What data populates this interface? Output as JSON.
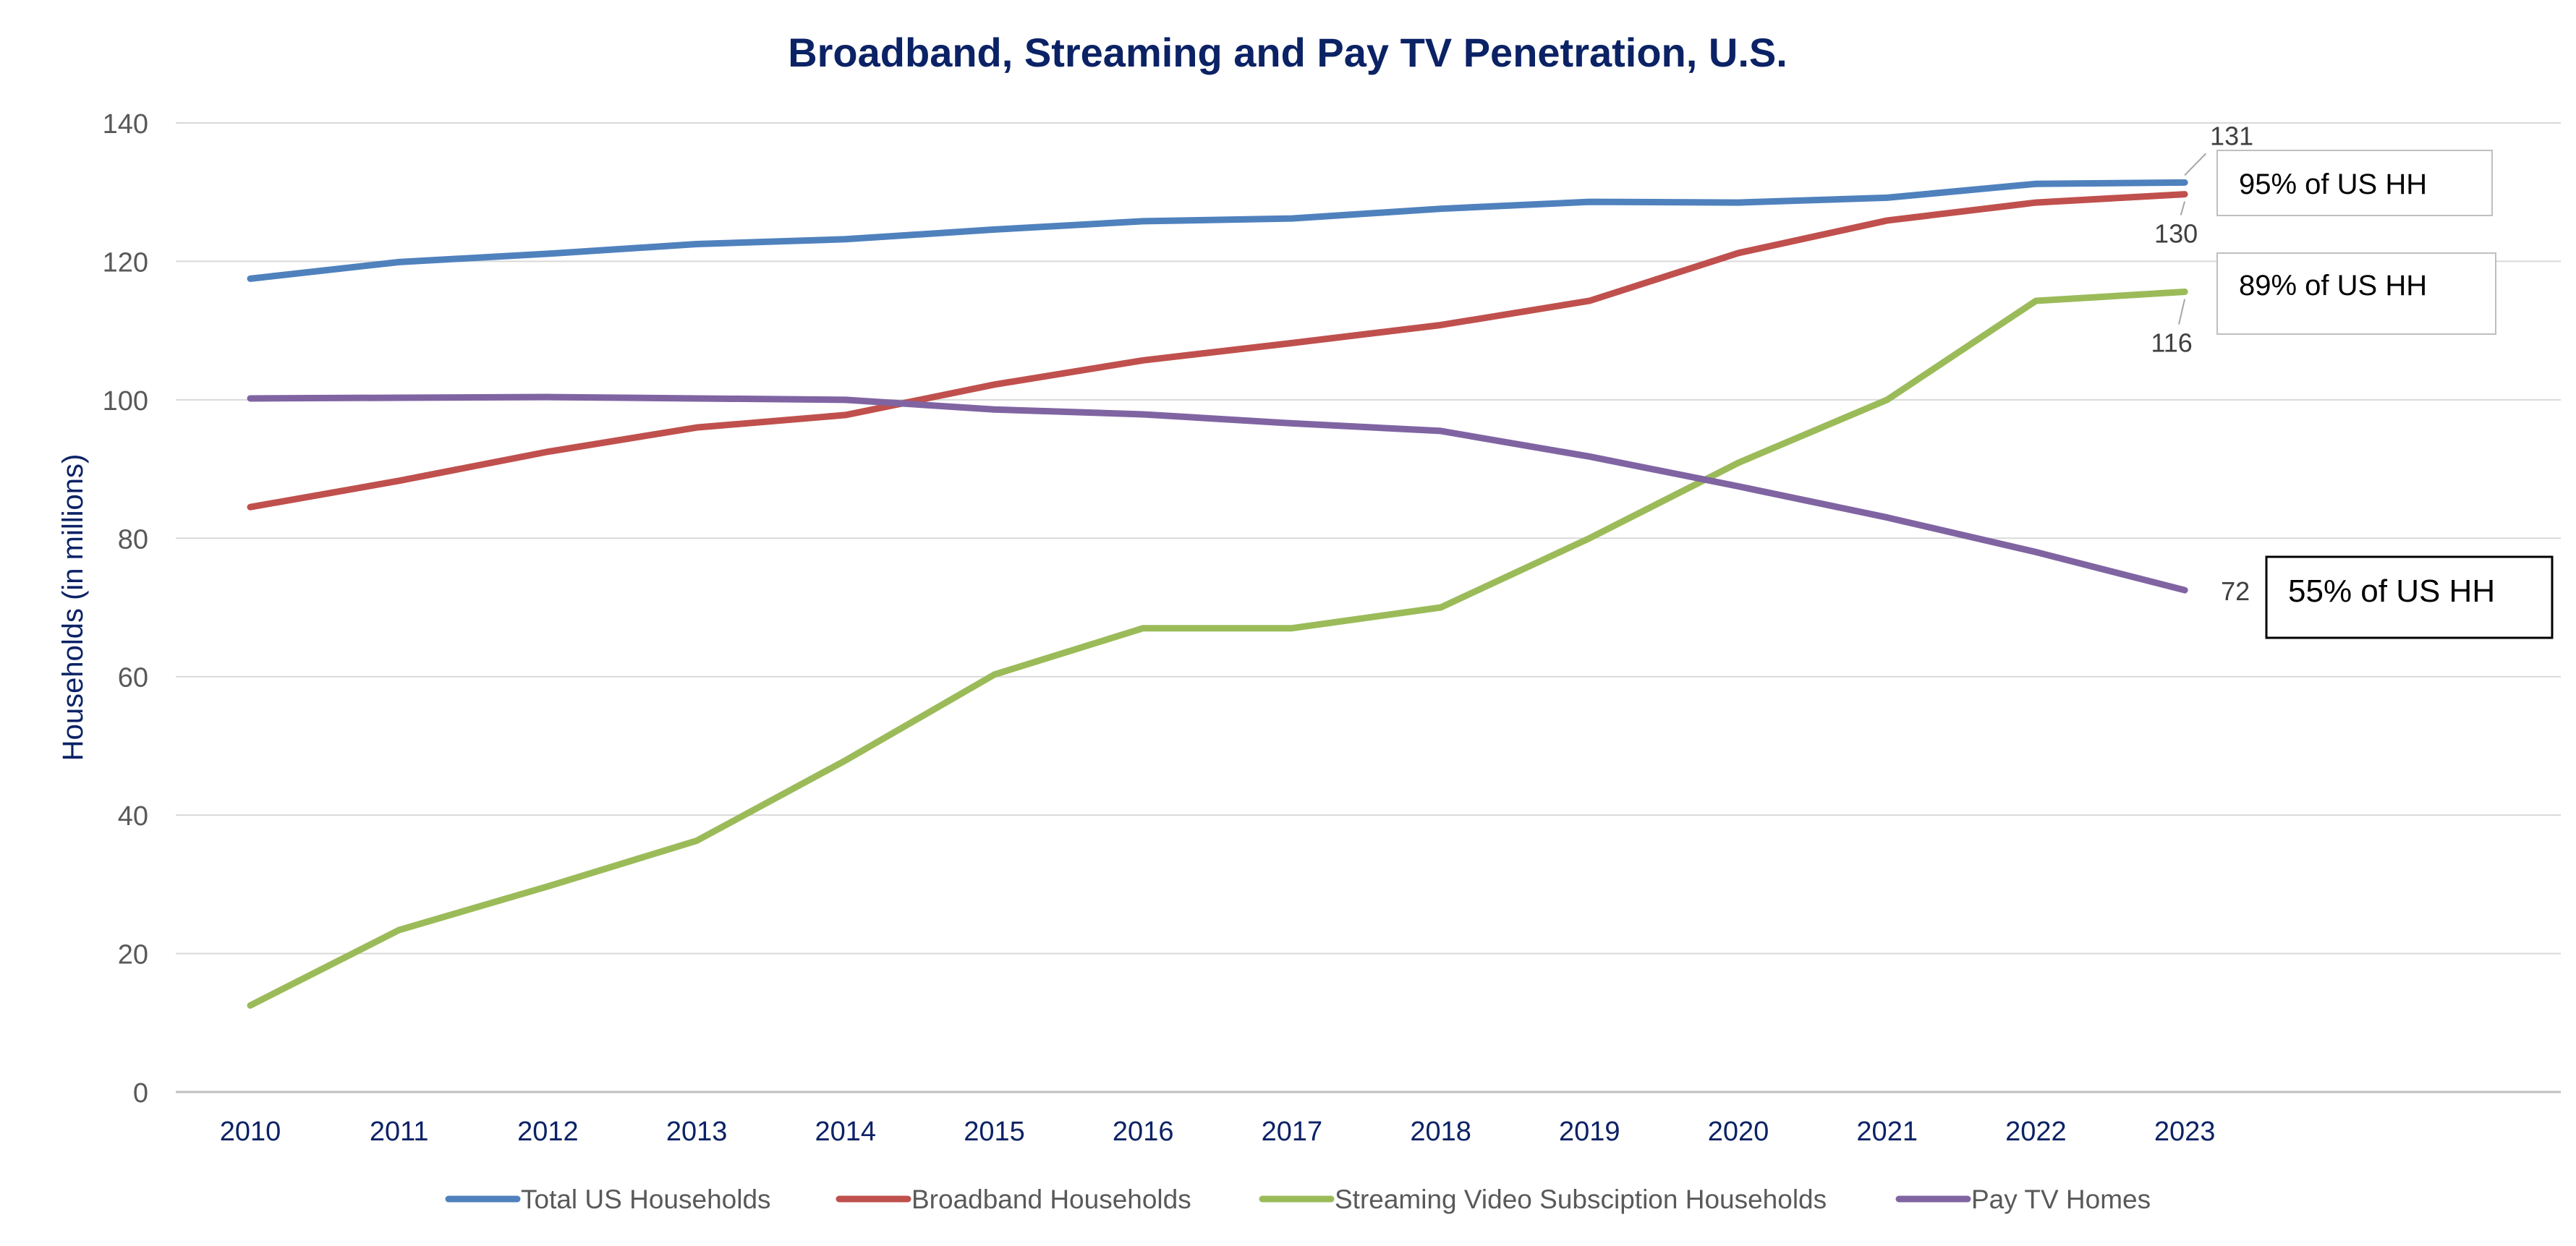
{
  "chart_data": {
    "type": "line",
    "title": "Broadband, Streaming and Pay TV Penetration, U.S.",
    "xlabel": "",
    "ylabel": "Households (in millions)",
    "ylim": [
      0,
      140
    ],
    "yticks": [
      "0",
      "20",
      "40",
      "60",
      "80",
      "100",
      "120",
      "140"
    ],
    "grid": true,
    "legend_position": "bottom",
    "categories": [
      "2010",
      "2011",
      "2012",
      "2013",
      "2014",
      "2015",
      "2016",
      "2017",
      "2018",
      "2019",
      "2020",
      "2021",
      "2022",
      "2023"
    ],
    "series": [
      {
        "name": "Total US Households",
        "color": "#4f81bd",
        "values": [
          117.5,
          119.9,
          121.1,
          122.5,
          123.2,
          124.6,
          125.8,
          126.2,
          127.6,
          128.6,
          128.5,
          129.2,
          131.2,
          131.4
        ]
      },
      {
        "name": "Broadband Households",
        "color": "#c0504d",
        "values": [
          84.5,
          88.3,
          92.5,
          96.0,
          97.8,
          102.2,
          105.7,
          108.2,
          110.8,
          114.3,
          121.2,
          125.9,
          128.5,
          129.7
        ]
      },
      {
        "name": "Streaming Video Subsciption Households",
        "color": "#9bbb59",
        "values": [
          12.5,
          23.4,
          29.7,
          36.3,
          47.9,
          60.3,
          67.0,
          67.0,
          70.0,
          80.0,
          90.9,
          100.0,
          114.3,
          115.6
        ]
      },
      {
        "name": "Pay TV Homes",
        "color": "#8064a2",
        "values": [
          100.2,
          100.3,
          100.4,
          100.2,
          100.0,
          98.6,
          97.9,
          96.6,
          95.5,
          91.8,
          87.5,
          83.0,
          78.0,
          72.5
        ]
      }
    ],
    "data_labels": [
      {
        "series": 0,
        "text": "131"
      },
      {
        "series": 1,
        "text": "130"
      },
      {
        "series": 2,
        "text": "116"
      },
      {
        "series": 3,
        "text": "72"
      }
    ],
    "annotations": [
      {
        "series": 0,
        "text": "95% of US HH",
        "border_color": "#bfbfbf"
      },
      {
        "series": 2,
        "text": "89% of US HH",
        "border_color": "#bfbfbf"
      },
      {
        "series": 3,
        "text": "55% of US HH",
        "border_color": "#000000"
      }
    ],
    "colors": {
      "title": "#0b2265",
      "axis_label": "#0b2265",
      "x_ticks": "#0b2265",
      "y_ticks": "#595959",
      "grid": "#d9d9d9",
      "legend_text": "#595959"
    }
  }
}
